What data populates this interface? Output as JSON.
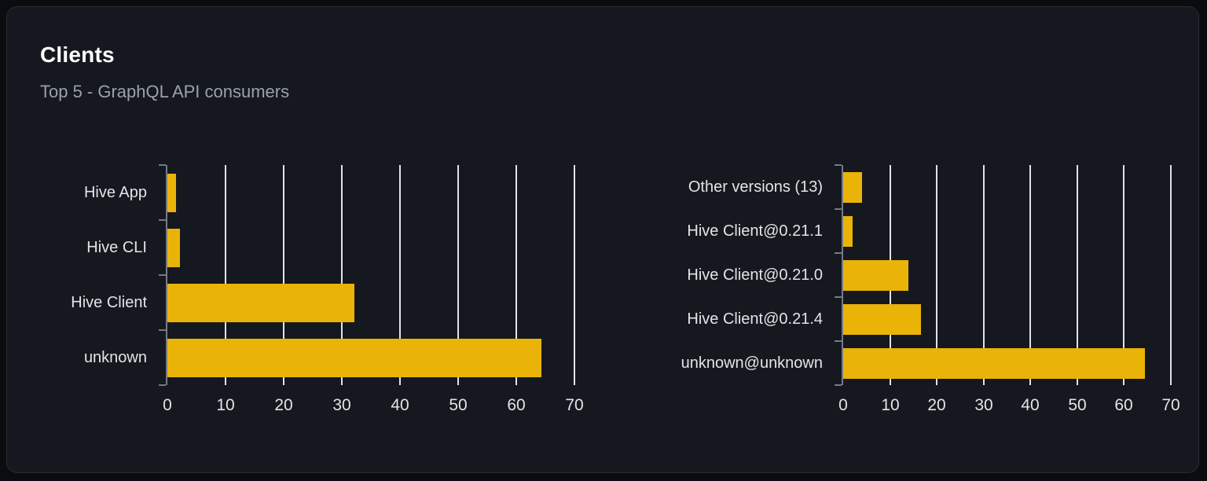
{
  "card": {
    "title": "Clients",
    "subtitle": "Top 5 - GraphQL API consumers"
  },
  "colors": {
    "page_bg": "#0a0c10",
    "card_bg": "#15181e",
    "card_border": "#272b33",
    "title_text": "#ffffff",
    "subtitle_text": "#9ba1ab",
    "label_text": "#e2e4e8",
    "bar": "#eab308",
    "gridline": "#dfe3ea",
    "axis": "#757a85"
  },
  "chart_data": [
    {
      "type": "bar",
      "orientation": "horizontal",
      "name": "clients-by-name",
      "categories": [
        "Hive App",
        "Hive CLI",
        "Hive Client",
        "unknown"
      ],
      "values": [
        1.5,
        2.2,
        32.1,
        64.3
      ],
      "xlim": [
        0,
        70
      ],
      "xticks": [
        0,
        10,
        20,
        30,
        40,
        50,
        60,
        70
      ],
      "grid": true,
      "legend": false,
      "xlabel": "",
      "ylabel": ""
    },
    {
      "type": "bar",
      "orientation": "horizontal",
      "name": "clients-by-version",
      "categories": [
        "Other versions (13)",
        "Hive Client@0.21.1",
        "Hive Client@0.21.0",
        "Hive Client@0.21.4",
        "unknown@unknown"
      ],
      "values": [
        4.0,
        2.0,
        13.9,
        16.6,
        64.4
      ],
      "xlim": [
        0,
        70
      ],
      "xticks": [
        0,
        10,
        20,
        30,
        40,
        50,
        60,
        70
      ],
      "grid": true,
      "legend": false,
      "xlabel": "",
      "ylabel": ""
    }
  ]
}
